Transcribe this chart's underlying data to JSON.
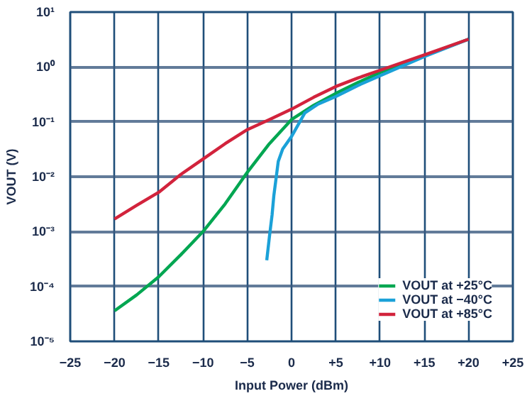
{
  "chart_data": {
    "type": "line",
    "xlabel": "Input Power (dBm)",
    "ylabel": "VOUT (V)",
    "log": "y",
    "grid": true,
    "legend": "bottom right",
    "line_style": "solid",
    "marker": "none",
    "xlim": [
      -25,
      25
    ],
    "ylim": [
      1e-05,
      10
    ],
    "xticks": [
      {
        "value": -25,
        "label": "−25"
      },
      {
        "value": -20,
        "label": "−20"
      },
      {
        "value": -15,
        "label": "−15"
      },
      {
        "value": -10,
        "label": "−10"
      },
      {
        "value": -5,
        "label": "−5"
      },
      {
        "value": 0,
        "label": "0"
      },
      {
        "value": 5,
        "label": "+5"
      },
      {
        "value": 10,
        "label": "+10"
      },
      {
        "value": 15,
        "label": "+15"
      },
      {
        "value": 20,
        "label": "+20"
      },
      {
        "value": 25,
        "label": "+25"
      }
    ],
    "yticks": [
      {
        "value": 1e-05,
        "label": "10⁻⁵"
      },
      {
        "value": 0.0001,
        "label": "10⁻⁴"
      },
      {
        "value": 0.001,
        "label": "10⁻³"
      },
      {
        "value": 0.01,
        "label": "10⁻²"
      },
      {
        "value": 0.1,
        "label": "10⁻¹"
      },
      {
        "value": 1,
        "label": "10⁰"
      },
      {
        "value": 10,
        "label": "10¹"
      }
    ],
    "series": [
      {
        "name": "VOUT at +25°C",
        "color": "#00a651",
        "x": [
          -20,
          -17.5,
          -15,
          -12.5,
          -10,
          -7.5,
          -5,
          -2.5,
          0,
          2.5,
          5,
          7.5,
          10,
          15,
          20
        ],
        "values": [
          3.6e-05,
          7e-05,
          0.00015,
          0.00038,
          0.001,
          0.0032,
          0.012,
          0.04,
          0.11,
          0.2,
          0.33,
          0.52,
          0.79,
          1.6,
          3.2
        ]
      },
      {
        "name": "VOUT at −40°C",
        "color": "#1ba1d8",
        "x": [
          -2.8,
          -2.5,
          -2.2,
          -2,
          -1.8,
          -1.5,
          -1,
          0,
          1.5,
          3,
          5,
          7.5,
          10,
          15,
          20
        ],
        "values": [
          0.0003,
          0.0008,
          0.002,
          0.0045,
          0.008,
          0.019,
          0.032,
          0.054,
          0.145,
          0.21,
          0.29,
          0.46,
          0.69,
          1.55,
          3.2
        ]
      },
      {
        "name": "VOUT at +85°C",
        "color": "#d2233c",
        "x": [
          -20,
          -17.5,
          -15,
          -12.5,
          -10,
          -7.5,
          -5,
          -2.5,
          0,
          2.5,
          5,
          7.5,
          10,
          15,
          20
        ],
        "values": [
          0.0017,
          0.003,
          0.0052,
          0.011,
          0.021,
          0.04,
          0.072,
          0.11,
          0.17,
          0.28,
          0.44,
          0.63,
          0.87,
          1.66,
          3.2
        ]
      }
    ]
  }
}
